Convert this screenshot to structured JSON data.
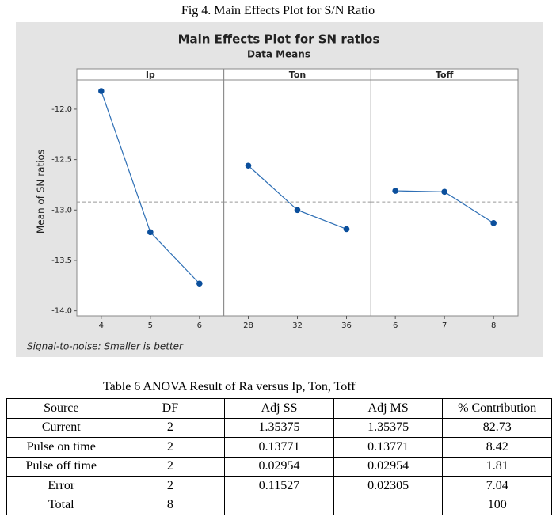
{
  "figure_caption": "Fig 4. Main Effects Plot for S/N Ratio",
  "chart_data": {
    "type": "line",
    "title": "Main Effects Plot for SN ratios",
    "subtitle": "Data Means",
    "y_label": "Mean of SN ratios",
    "note": "Signal-to-noise: Smaller is better",
    "color": "#2e6fb5",
    "mean_line": -12.92,
    "ylim": [
      -14.05,
      -11.71
    ],
    "yticks": [
      {
        "value": -12,
        "label": "-12.0"
      },
      {
        "value": -12.5,
        "label": "-12.5"
      },
      {
        "value": -13,
        "label": "-13.0"
      },
      {
        "value": -13.5,
        "label": "-13.5"
      },
      {
        "value": -14,
        "label": "-14.0"
      }
    ],
    "panels": [
      {
        "name": "Ip",
        "categories": [
          "4",
          "5",
          "6"
        ],
        "values": [
          -11.82,
          -13.22,
          -13.73
        ]
      },
      {
        "name": "Ton",
        "categories": [
          "28",
          "32",
          "36"
        ],
        "values": [
          -12.56,
          -13.0,
          -13.19
        ]
      },
      {
        "name": "Toff",
        "categories": [
          "6",
          "7",
          "8"
        ],
        "values": [
          -12.81,
          -12.82,
          -13.13
        ]
      }
    ]
  },
  "table": {
    "caption": "Table 6 ANOVA Result of Ra versus Ip, Ton, Toff",
    "header": [
      "Source",
      "DF",
      "Adj SS",
      "Adj MS",
      "% Contribution"
    ],
    "rows": [
      [
        "Current",
        "2",
        "1.35375",
        "1.35375",
        "82.73"
      ],
      [
        "Pulse on time",
        "2",
        "0.13771",
        "0.13771",
        "8.42"
      ],
      [
        "Pulse off time",
        "2",
        "0.02954",
        "0.02954",
        "1.81"
      ],
      [
        "Error",
        "2",
        "0.11527",
        "0.02305",
        "7.04"
      ],
      [
        "Total",
        "8",
        "",
        "",
        "100"
      ]
    ]
  }
}
